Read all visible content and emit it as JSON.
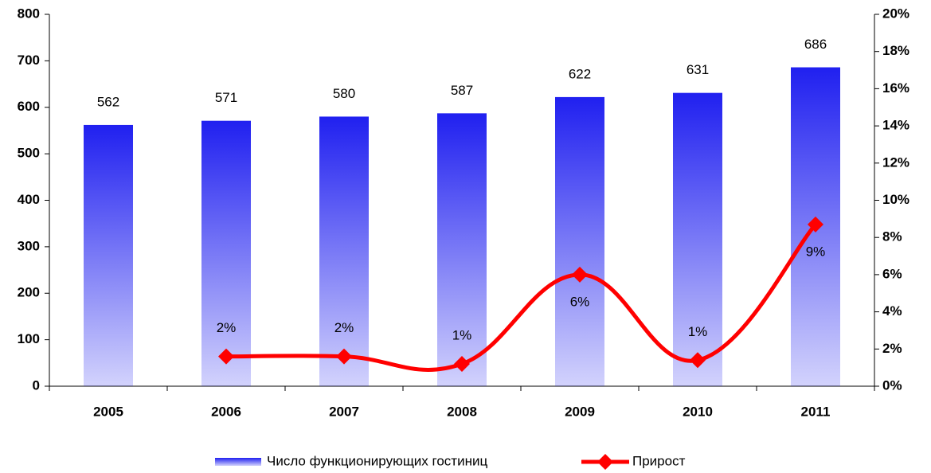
{
  "chart_data": {
    "type": "bar_line",
    "categories": [
      "2005",
      "2006",
      "2007",
      "2008",
      "2009",
      "2010",
      "2011"
    ],
    "series": [
      {
        "name": "Число функционирующих гостиниц",
        "type": "bar",
        "color": "#2020f0",
        "values": [
          562,
          571,
          580,
          587,
          622,
          631,
          686
        ]
      },
      {
        "name": "Прирост",
        "type": "line",
        "axis": "y2",
        "color": "#ff0000",
        "values": [
          null,
          1.6,
          1.6,
          1.2,
          6.0,
          1.4,
          8.7
        ],
        "value_labels": [
          null,
          "2%",
          "2%",
          "1%",
          "6%",
          "1%",
          "9%"
        ]
      }
    ],
    "ylim": [
      0,
      800
    ],
    "yticks": [
      0,
      100,
      200,
      300,
      400,
      500,
      600,
      700,
      800
    ],
    "y2lim": [
      0,
      20
    ],
    "y2ticks": [
      {
        "value": 0,
        "label": "0%"
      },
      {
        "value": 2,
        "label": "2%"
      },
      {
        "value": 4,
        "label": "4%"
      },
      {
        "value": 6,
        "label": "6%"
      },
      {
        "value": 8,
        "label": "8%"
      },
      {
        "value": 10,
        "label": "10%"
      },
      {
        "value": 12,
        "label": "12%"
      },
      {
        "value": 14,
        "label": "14%"
      },
      {
        "value": 16,
        "label": "16%"
      },
      {
        "value": 18,
        "label": "18%"
      },
      {
        "value": 20,
        "label": "20%"
      }
    ],
    "legend": "bottom"
  }
}
